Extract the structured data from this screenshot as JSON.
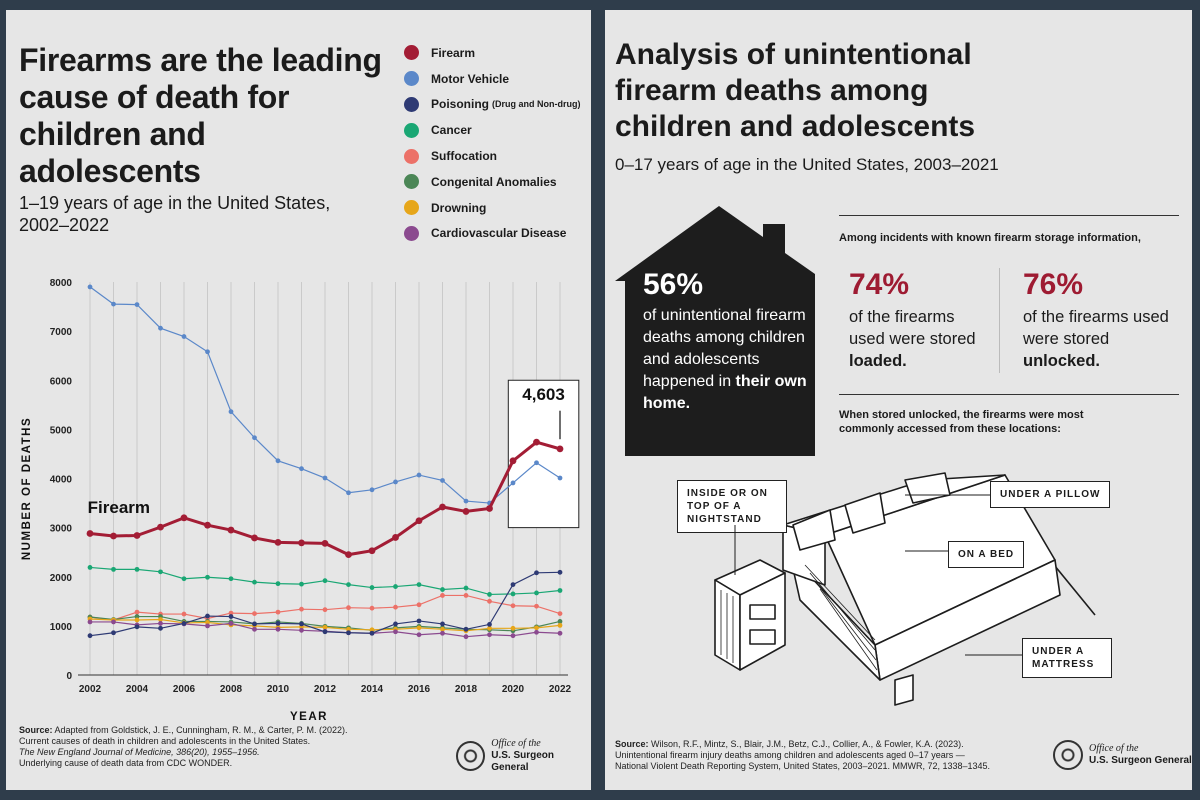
{
  "left": {
    "title": "Firearms are the leading cause of death for children and adolescents",
    "subtitle": "1–19 years of age in the United States, 2002–2022",
    "legend": [
      {
        "label": "Firearm",
        "sub": "",
        "color": "#a31d35"
      },
      {
        "label": "Motor Vehicle",
        "sub": "",
        "color": "#5b88c9"
      },
      {
        "label": "Poisoning",
        "sub": "(Drug and Non-drug)",
        "color": "#2e3a74"
      },
      {
        "label": "Cancer",
        "sub": "",
        "color": "#1aa774"
      },
      {
        "label": "Suffocation",
        "sub": "",
        "color": "#ec7168"
      },
      {
        "label": "Congenital Anomalies",
        "sub": "",
        "color": "#4b8656"
      },
      {
        "label": "Drowning",
        "sub": "",
        "color": "#e6a61a"
      },
      {
        "label": "Cardiovascular Disease",
        "sub": "",
        "color": "#8b4a8f"
      }
    ],
    "source_label": "Source:",
    "source_lines": [
      "Adapted from Goldstick, J. E., Cunningham, R. M., & Carter, P. M. (2022).",
      "Current causes of death in children and adolescents in the United States.",
      "The New England Journal of Medicine, 386(20), 1955–1956.",
      "Underlying cause of death data from CDC WONDER."
    ],
    "logo_line1": "Office of the",
    "logo_line2": "U.S. Surgeon General"
  },
  "chart_data": {
    "type": "line",
    "title": "Firearms are the leading cause of death for children and adolescents",
    "subtitle": "1–19 years of age in the United States, 2002–2022",
    "xlabel": "YEAR",
    "ylabel": "NUMBER OF DEATHS",
    "xlim": [
      2002,
      2022
    ],
    "ylim": [
      0,
      8000
    ],
    "x_ticks": [
      2002,
      2004,
      2006,
      2008,
      2010,
      2012,
      2014,
      2016,
      2018,
      2020,
      2022
    ],
    "y_ticks": [
      0,
      1000,
      2000,
      3000,
      4000,
      5000,
      6000,
      7000,
      8000
    ],
    "grid": "vertical",
    "legend_position": "top-right",
    "x": [
      2002,
      2003,
      2004,
      2005,
      2006,
      2007,
      2008,
      2009,
      2010,
      2011,
      2012,
      2013,
      2014,
      2015,
      2016,
      2017,
      2018,
      2019,
      2020,
      2021,
      2022
    ],
    "series": [
      {
        "name": "Motor Vehicle",
        "color": "#5b88c9",
        "values": [
          7900,
          7550,
          7540,
          7060,
          6890,
          6580,
          5360,
          4830,
          4360,
          4200,
          4010,
          3710,
          3770,
          3930,
          4070,
          3960,
          3540,
          3500,
          3910,
          4320,
          4010
        ]
      },
      {
        "name": "Cancer",
        "color": "#1aa774",
        "values": [
          2190,
          2150,
          2150,
          2100,
          1960,
          1990,
          1960,
          1890,
          1860,
          1850,
          1920,
          1840,
          1780,
          1800,
          1840,
          1740,
          1770,
          1640,
          1650,
          1670,
          1720
        ]
      },
      {
        "name": "Suffocation",
        "color": "#ec7168",
        "values": [
          1180,
          1120,
          1280,
          1240,
          1240,
          1150,
          1260,
          1250,
          1280,
          1340,
          1330,
          1370,
          1360,
          1380,
          1430,
          1620,
          1620,
          1500,
          1410,
          1400,
          1250
        ]
      },
      {
        "name": "Congenital Anomalies",
        "color": "#4b8656",
        "values": [
          1180,
          1130,
          1190,
          1190,
          1090,
          1090,
          1080,
          1040,
          1080,
          1050,
          990,
          960,
          910,
          960,
          990,
          960,
          930,
          920,
          900,
          980,
          1090
        ]
      },
      {
        "name": "Drowning",
        "color": "#e6a61a",
        "values": [
          1140,
          1120,
          1120,
          1130,
          1060,
          1070,
          1020,
          1000,
          970,
          980,
          970,
          930,
          920,
          930,
          960,
          930,
          900,
          950,
          950,
          960,
          1010
        ]
      },
      {
        "name": "Cardiovascular Disease",
        "color": "#8b4a8f",
        "values": [
          1080,
          1080,
          1020,
          1050,
          1040,
          1000,
          1050,
          930,
          930,
          910,
          890,
          860,
          850,
          880,
          820,
          850,
          780,
          820,
          800,
          870,
          850
        ]
      },
      {
        "name": "Poisoning",
        "color": "#2e3a74",
        "values": [
          800,
          860,
          980,
          950,
          1050,
          1200,
          1190,
          1040,
          1050,
          1040,
          880,
          860,
          850,
          1040,
          1100,
          1040,
          930,
          1030,
          1840,
          2080,
          2090
        ]
      },
      {
        "name": "Firearm",
        "color": "#a31d35",
        "values": [
          2880,
          2830,
          2840,
          3010,
          3200,
          3050,
          2950,
          2790,
          2700,
          2690,
          2680,
          2450,
          2530,
          2800,
          3140,
          3420,
          3330,
          3390,
          4360,
          4740,
          4603
        ]
      }
    ],
    "annotations": [
      {
        "text": "Firearm",
        "series": "Firearm"
      },
      {
        "text": "4,603",
        "series": "Firearm",
        "x": 2022
      }
    ]
  },
  "right": {
    "title": "Analysis of unintentional firearm deaths among children and adolescents",
    "subtitle": "0–17 years of age in the United States, 2003–2021",
    "house_big": "56%",
    "house_text_pre": "of unintentional firearm deaths among children and adolescents happened in ",
    "house_text_bold": "their own home.",
    "storage_intro": "Among incidents with known firearm storage information,",
    "stat1_big": "74%",
    "stat1_pre": "of the firearms used were stored ",
    "stat1_bold": "loaded.",
    "stat2_big": "76%",
    "stat2_pre": "of the firearms used were stored ",
    "stat2_bold": "unlocked.",
    "unlocked_intro": "When stored unlocked, the firearms were most commonly accessed from these locations:",
    "callouts": {
      "nightstand": "INSIDE OR ON TOP OF A NIGHTSTAND",
      "pillow": "UNDER A PILLOW",
      "bed": "ON A BED",
      "mattress": "UNDER A MATTRESS"
    },
    "source_label": "Source:",
    "source_lines": [
      "Wilson, R.F., Mintz, S., Blair, J.M., Betz, C.J., Collier, A., & Fowler, K.A. (2023).",
      "Unintentional firearm injury deaths among children and adolescents aged 0–17 years —",
      "National Violent Death Reporting System, United States, 2003–2021. MMWR, 72, 1338–1345."
    ],
    "logo_line1": "Office of the",
    "logo_line2": "U.S. Surgeon General"
  }
}
